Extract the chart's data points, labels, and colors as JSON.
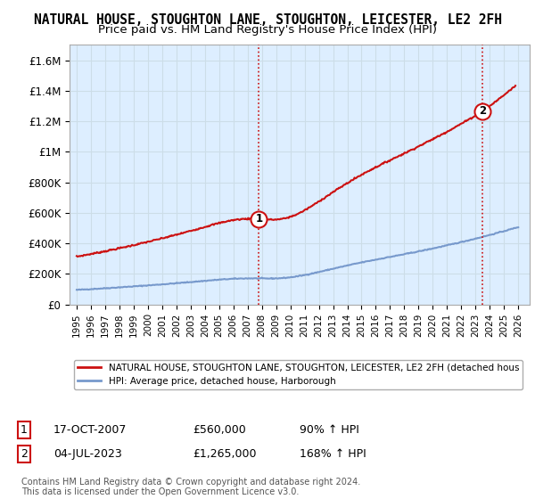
{
  "title": "NATURAL HOUSE, STOUGHTON LANE, STOUGHTON, LEICESTER, LE2 2FH",
  "subtitle": "Price paid vs. HM Land Registry's House Price Index (HPI)",
  "title_fontsize": 10.5,
  "subtitle_fontsize": 9.5,
  "ylim": [
    0,
    1700000
  ],
  "yticks": [
    0,
    200000,
    400000,
    600000,
    800000,
    1000000,
    1200000,
    1400000,
    1600000
  ],
  "ytick_labels": [
    "£0",
    "£200K",
    "£400K",
    "£600K",
    "£800K",
    "£1M",
    "£1.2M",
    "£1.4M",
    "£1.6M"
  ],
  "xlim_start": 1994.5,
  "xlim_end": 2026.8,
  "xticks": [
    1995,
    1996,
    1997,
    1998,
    1999,
    2000,
    2001,
    2002,
    2003,
    2004,
    2005,
    2006,
    2007,
    2008,
    2009,
    2010,
    2011,
    2012,
    2013,
    2014,
    2015,
    2016,
    2017,
    2018,
    2019,
    2020,
    2021,
    2022,
    2023,
    2024,
    2025,
    2026
  ],
  "hpi_color": "#7799cc",
  "property_color": "#cc1111",
  "property_line_label": "NATURAL HOUSE, STOUGHTON LANE, STOUGHTON, LEICESTER, LE2 2FH (detached hous",
  "hpi_line_label": "HPI: Average price, detached house, Harborough",
  "sale1_x": 2007.8,
  "sale1_y": 560000,
  "sale1_label": "1",
  "sale1_date": "17-OCT-2007",
  "sale1_price": "£560,000",
  "sale1_hpi": "90% ↑ HPI",
  "sale2_x": 2023.5,
  "sale2_y": 1265000,
  "sale2_label": "2",
  "sale2_date": "04-JUL-2023",
  "sale2_price": "£1,265,000",
  "sale2_hpi": "168% ↑ HPI",
  "footer": "Contains HM Land Registry data © Crown copyright and database right 2024.\nThis data is licensed under the Open Government Licence v3.0.",
  "background_color": "#ffffff",
  "grid_color": "#ccdde8",
  "plot_bg_color": "#ddeeff"
}
